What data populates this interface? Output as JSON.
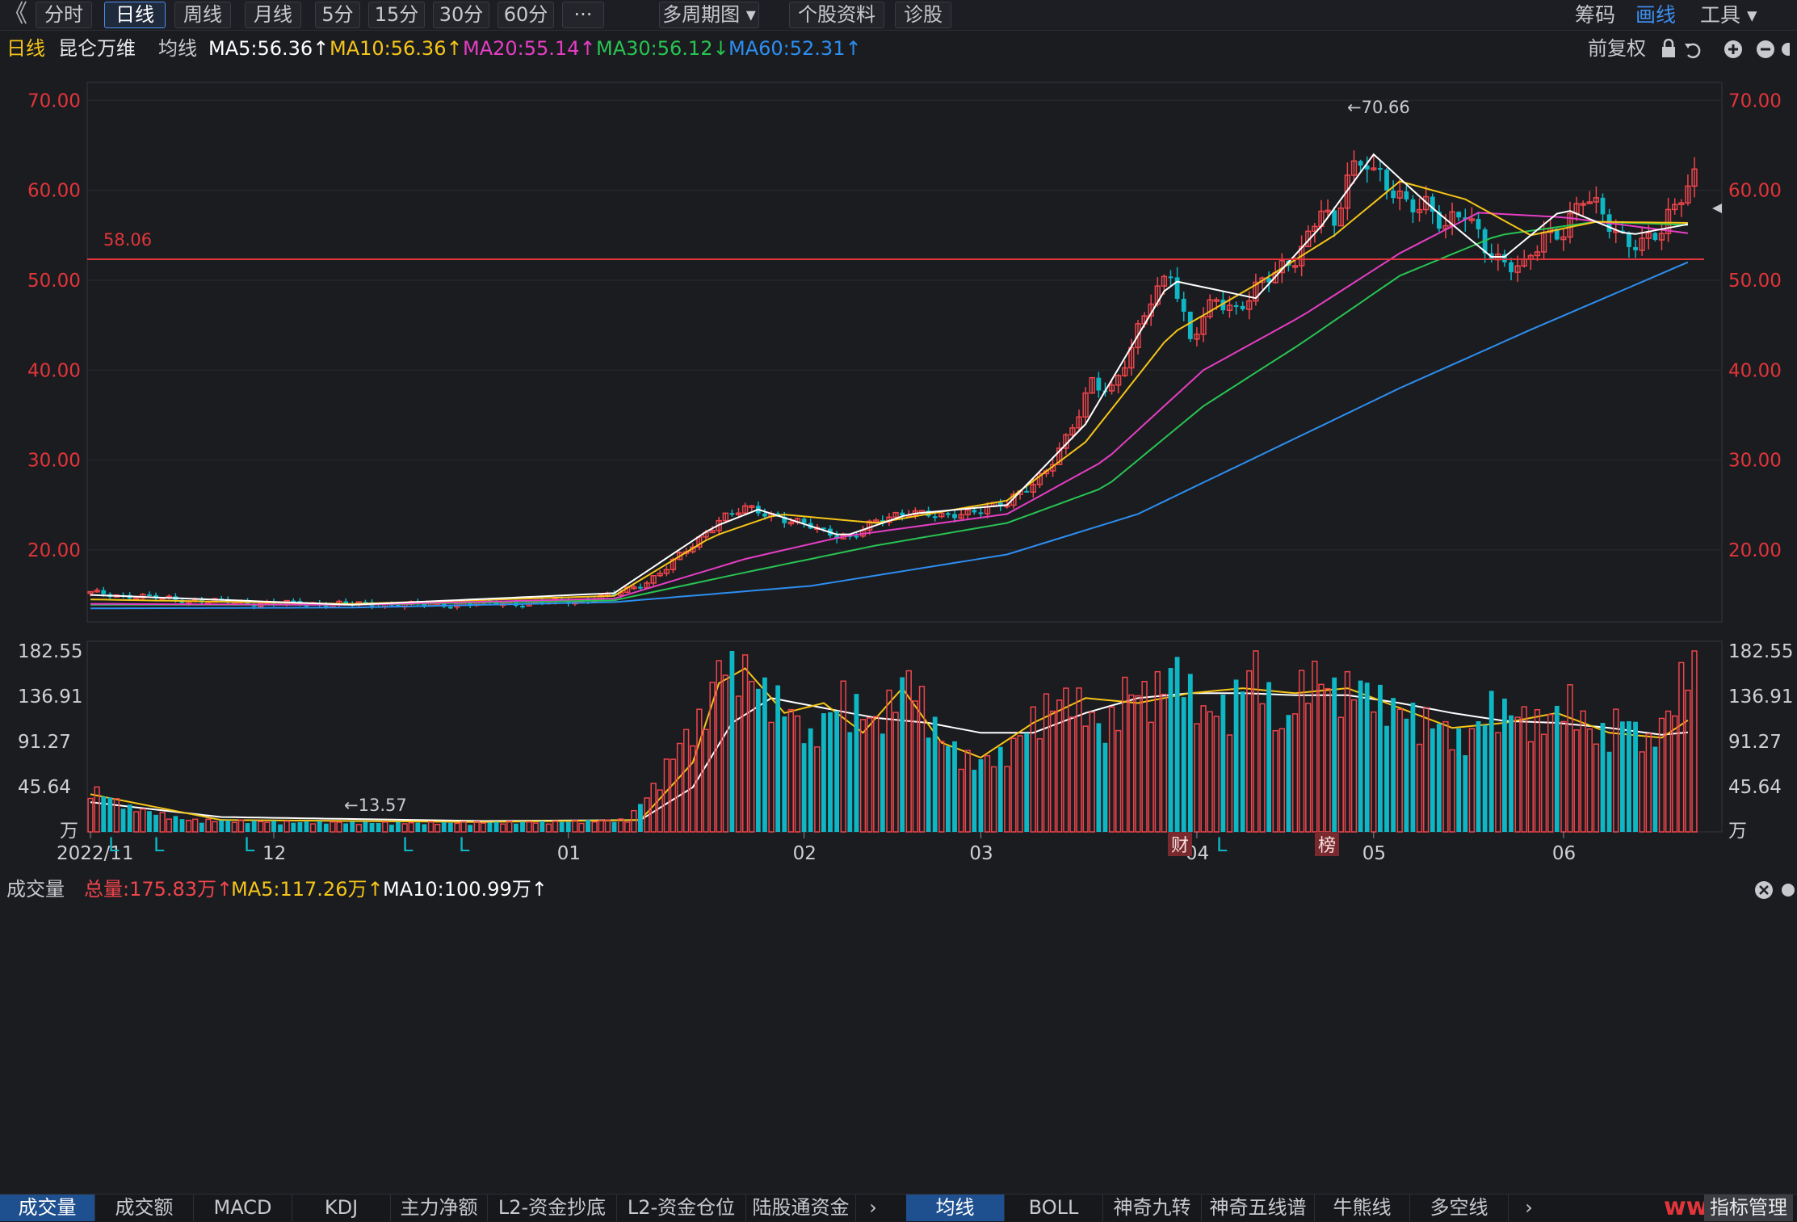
{
  "toolbar": {
    "back": "《",
    "tabs": [
      "分时",
      "日线",
      "周线",
      "月线",
      "5分",
      "15分",
      "30分",
      "60分",
      "···",
      "多周期图 ▾",
      "个股资料",
      "诊股"
    ],
    "active_tab": "日线",
    "right": {
      "chips": "筹码",
      "draw": "画线",
      "tools": "工具 ▾"
    }
  },
  "legend": {
    "period": "日线",
    "stock": "昆仑万维",
    "ma_label": "均线",
    "ma5": "MA5:56.36↑",
    "ma10": "MA10:56.36↑",
    "ma20": "MA20:55.14↑",
    "ma30": "MA30:56.12↓",
    "ma60": "MA60:52.31↑",
    "adjust": "前复权"
  },
  "colors": {
    "up": "#f0454b",
    "down": "#0fb6c4",
    "ma5": "#ffffff",
    "ma10": "#f5c518",
    "ma20": "#e53ec4",
    "ma30": "#28c452",
    "ma60": "#2d8ef0"
  },
  "price_axis": [
    "70.00",
    "60.00",
    "50.00",
    "40.00",
    "30.00",
    "20.00"
  ],
  "annotations": {
    "ref_line": "58.06",
    "high": "←70.66",
    "low": "←13.57",
    "tag_fin": "财",
    "tag_rank": "榜",
    "l_marker": "L"
  },
  "x_axis": [
    "2022/11",
    "12",
    "01",
    "02",
    "03",
    "04",
    "05",
    "06"
  ],
  "volume_legend": {
    "title": "成交量",
    "total": "总量:175.83万↑",
    "ma5": "MA5:117.26万↑",
    "ma10": "MA10:100.99万↑"
  },
  "volume_axis": [
    "182.55",
    "136.91",
    "91.27",
    "45.64",
    "万"
  ],
  "bottom_tabs_left": [
    "成交量",
    "成交额",
    "MACD",
    "KDJ",
    "主力净额",
    "L2-资金抄底",
    "L2-资金仓位",
    "陆股通资金"
  ],
  "bottom_tabs_right": [
    "均线",
    "BOLL",
    "神奇九转",
    "神奇五线谱",
    "牛熊线",
    "多空线"
  ],
  "bottom_right": "指标管理",
  "watermark": "www.ddg",
  "chart_data": {
    "type": "candlestick",
    "title": "昆仑万维 日线",
    "price_range": [
      12.0,
      72.0
    ],
    "volume_unit": "万",
    "volume_range": [
      0,
      182.55
    ],
    "reference_price": 58.06,
    "max_price": 70.66,
    "min_price": 13.57,
    "close_path": [
      [
        0,
        15.2
      ],
      [
        8,
        14.8
      ],
      [
        15,
        14.4
      ],
      [
        25,
        14.1
      ],
      [
        40,
        14.0
      ],
      [
        50,
        13.9
      ],
      [
        58,
        14.0
      ],
      [
        68,
        14.1
      ],
      [
        75,
        14.4
      ],
      [
        80,
        15.0
      ],
      [
        85,
        16.5
      ],
      [
        88,
        18.0
      ],
      [
        92,
        20.5
      ],
      [
        96,
        23.5
      ],
      [
        100,
        24.5
      ],
      [
        104,
        24.0
      ],
      [
        108,
        23.0
      ],
      [
        112,
        22.0
      ],
      [
        116,
        21.5
      ],
      [
        120,
        23.0
      ],
      [
        125,
        24.5
      ],
      [
        130,
        23.5
      ],
      [
        135,
        24.5
      ],
      [
        140,
        25.0
      ],
      [
        143,
        27.0
      ],
      [
        146,
        29.0
      ],
      [
        149,
        32.0
      ],
      [
        151,
        35.0
      ],
      [
        153,
        39.0
      ],
      [
        156,
        38.0
      ],
      [
        159,
        42.0
      ],
      [
        162,
        48.0
      ],
      [
        165,
        51.5
      ],
      [
        168,
        43.0
      ],
      [
        172,
        48.0
      ],
      [
        175,
        47.0
      ],
      [
        180,
        50.0
      ],
      [
        183,
        52.0
      ],
      [
        186,
        55.0
      ],
      [
        188,
        58.0
      ],
      [
        190,
        55.0
      ],
      [
        192,
        62.0
      ],
      [
        195,
        64.0
      ],
      [
        198,
        60.0
      ],
      [
        201,
        58.0
      ],
      [
        204,
        59.0
      ],
      [
        207,
        56.0
      ],
      [
        210,
        57.0
      ],
      [
        213,
        54.0
      ],
      [
        216,
        52.0
      ],
      [
        219,
        51.0
      ],
      [
        222,
        55.0
      ],
      [
        225,
        56.0
      ],
      [
        228,
        59.0
      ],
      [
        231,
        57.0
      ],
      [
        234,
        55.0
      ],
      [
        237,
        54.0
      ],
      [
        240,
        55.0
      ],
      [
        243,
        60.0
      ],
      [
        245,
        62.0
      ]
    ],
    "ma60_path": [
      [
        0,
        13.5
      ],
      [
        40,
        13.6
      ],
      [
        80,
        14.2
      ],
      [
        110,
        16.0
      ],
      [
        140,
        19.5
      ],
      [
        160,
        24.0
      ],
      [
        180,
        31.0
      ],
      [
        200,
        38.0
      ],
      [
        220,
        44.5
      ],
      [
        245,
        52.31
      ]
    ],
    "ma30_path": [
      [
        0,
        13.9
      ],
      [
        40,
        13.9
      ],
      [
        80,
        14.4
      ],
      [
        100,
        17.5
      ],
      [
        120,
        20.5
      ],
      [
        140,
        23.0
      ],
      [
        155,
        27.0
      ],
      [
        170,
        36.0
      ],
      [
        185,
        43.0
      ],
      [
        200,
        50.5
      ],
      [
        215,
        55.0
      ],
      [
        230,
        56.5
      ],
      [
        245,
        56.12
      ]
    ],
    "ma20_path": [
      [
        0,
        14.0
      ],
      [
        40,
        13.9
      ],
      [
        80,
        14.6
      ],
      [
        100,
        19.0
      ],
      [
        115,
        21.5
      ],
      [
        140,
        24.0
      ],
      [
        155,
        30.0
      ],
      [
        170,
        40.0
      ],
      [
        185,
        46.0
      ],
      [
        200,
        53.0
      ],
      [
        212,
        57.5
      ],
      [
        225,
        57.0
      ],
      [
        245,
        55.14
      ]
    ],
    "ma10_path": [
      [
        0,
        14.5
      ],
      [
        40,
        14.0
      ],
      [
        80,
        14.9
      ],
      [
        95,
        21.5
      ],
      [
        105,
        24.0
      ],
      [
        120,
        23.0
      ],
      [
        140,
        25.5
      ],
      [
        152,
        32.0
      ],
      [
        165,
        44.0
      ],
      [
        178,
        49.5
      ],
      [
        190,
        55.0
      ],
      [
        200,
        61.0
      ],
      [
        210,
        59.0
      ],
      [
        220,
        55.0
      ],
      [
        230,
        56.5
      ],
      [
        245,
        56.36
      ]
    ],
    "ma5_path": [
      [
        0,
        15.0
      ],
      [
        40,
        13.9
      ],
      [
        80,
        15.2
      ],
      [
        95,
        22.5
      ],
      [
        102,
        24.5
      ],
      [
        115,
        21.5
      ],
      [
        125,
        24.0
      ],
      [
        140,
        25.0
      ],
      [
        152,
        34.0
      ],
      [
        165,
        50.0
      ],
      [
        178,
        48.0
      ],
      [
        188,
        56.0
      ],
      [
        196,
        64.0
      ],
      [
        205,
        58.0
      ],
      [
        215,
        52.0
      ],
      [
        225,
        58.0
      ],
      [
        235,
        55.0
      ],
      [
        245,
        56.36
      ]
    ],
    "volume_path": [
      [
        0,
        45
      ],
      [
        6,
        25
      ],
      [
        15,
        12
      ],
      [
        30,
        10
      ],
      [
        50,
        9
      ],
      [
        70,
        10
      ],
      [
        82,
        12
      ],
      [
        86,
        45
      ],
      [
        90,
        90
      ],
      [
        94,
        120
      ],
      [
        96,
        170
      ],
      [
        98,
        182
      ],
      [
        102,
        150
      ],
      [
        106,
        130
      ],
      [
        110,
        95
      ],
      [
        115,
        140
      ],
      [
        120,
        110
      ],
      [
        125,
        160
      ],
      [
        130,
        95
      ],
      [
        135,
        70
      ],
      [
        140,
        80
      ],
      [
        145,
        125
      ],
      [
        150,
        140
      ],
      [
        155,
        100
      ],
      [
        158,
        145
      ],
      [
        162,
        140
      ],
      [
        166,
        170
      ],
      [
        170,
        120
      ],
      [
        174,
        130
      ],
      [
        178,
        175
      ],
      [
        182,
        100
      ],
      [
        186,
        165
      ],
      [
        190,
        145
      ],
      [
        194,
        150
      ],
      [
        198,
        130
      ],
      [
        202,
        120
      ],
      [
        206,
        110
      ],
      [
        210,
        90
      ],
      [
        214,
        130
      ],
      [
        218,
        120
      ],
      [
        222,
        110
      ],
      [
        226,
        135
      ],
      [
        230,
        95
      ],
      [
        234,
        120
      ],
      [
        238,
        90
      ],
      [
        242,
        130
      ],
      [
        244,
        182
      ]
    ],
    "vol_ma5_path": [
      [
        0,
        38
      ],
      [
        20,
        12
      ],
      [
        60,
        10
      ],
      [
        84,
        12
      ],
      [
        92,
        70
      ],
      [
        96,
        150
      ],
      [
        100,
        165
      ],
      [
        106,
        120
      ],
      [
        112,
        130
      ],
      [
        118,
        100
      ],
      [
        124,
        145
      ],
      [
        130,
        90
      ],
      [
        136,
        75
      ],
      [
        144,
        110
      ],
      [
        152,
        135
      ],
      [
        160,
        130
      ],
      [
        168,
        140
      ],
      [
        176,
        145
      ],
      [
        184,
        140
      ],
      [
        192,
        145
      ],
      [
        200,
        125
      ],
      [
        208,
        105
      ],
      [
        216,
        110
      ],
      [
        224,
        120
      ],
      [
        232,
        100
      ],
      [
        240,
        95
      ],
      [
        245,
        117
      ]
    ],
    "vol_ma10_path": [
      [
        0,
        30
      ],
      [
        20,
        15
      ],
      [
        60,
        11
      ],
      [
        84,
        12
      ],
      [
        92,
        45
      ],
      [
        98,
        110
      ],
      [
        104,
        135
      ],
      [
        112,
        125
      ],
      [
        120,
        115
      ],
      [
        128,
        110
      ],
      [
        136,
        100
      ],
      [
        144,
        100
      ],
      [
        152,
        120
      ],
      [
        160,
        135
      ],
      [
        168,
        140
      ],
      [
        176,
        140
      ],
      [
        184,
        138
      ],
      [
        192,
        138
      ],
      [
        200,
        130
      ],
      [
        208,
        120
      ],
      [
        216,
        112
      ],
      [
        224,
        110
      ],
      [
        232,
        105
      ],
      [
        240,
        98
      ],
      [
        245,
        101
      ]
    ]
  }
}
